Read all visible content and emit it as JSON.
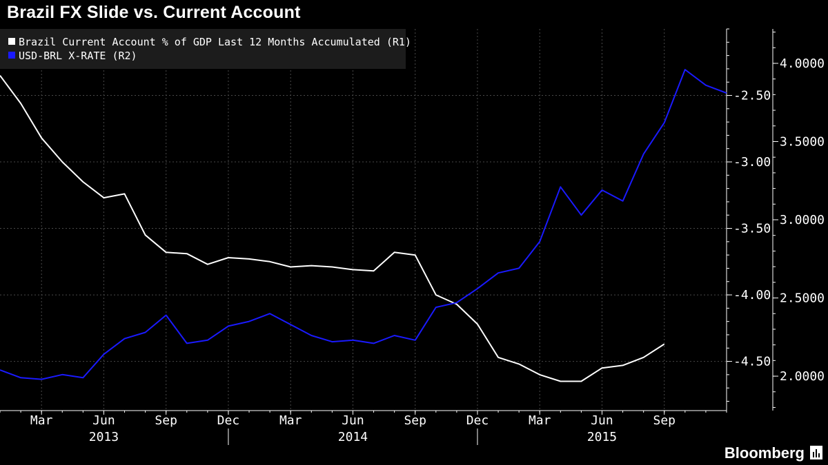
{
  "title": "Brazil FX Slide vs. Current Account",
  "brand": "Bloomberg",
  "colors": {
    "background": "#000000",
    "current_account": "#ffffff",
    "usd_brl": "#1a1aff",
    "axis": "#ffffff",
    "grid": "#4a4a4a"
  },
  "chart_data": {
    "type": "line",
    "title": "Brazil FX Slide vs. Current Account",
    "grid": true,
    "legend_position": "top-left",
    "x_axis": {
      "range": [
        "2013-01-01",
        "2015-12-01"
      ],
      "month_ticks": [
        {
          "label": "Mar",
          "date": "2013-03-01"
        },
        {
          "label": "Jun",
          "date": "2013-06-01"
        },
        {
          "label": "Sep",
          "date": "2013-09-01"
        },
        {
          "label": "Dec",
          "date": "2013-12-01"
        },
        {
          "label": "Mar",
          "date": "2014-03-01"
        },
        {
          "label": "Jun",
          "date": "2014-06-01"
        },
        {
          "label": "Sep",
          "date": "2014-09-01"
        },
        {
          "label": "Dec",
          "date": "2014-12-01"
        },
        {
          "label": "Mar",
          "date": "2015-03-01"
        },
        {
          "label": "Jun",
          "date": "2015-06-01"
        },
        {
          "label": "Sep",
          "date": "2015-09-01"
        }
      ],
      "year_labels": [
        {
          "label": "2013",
          "date": "2013-06-01"
        },
        {
          "label": "2014",
          "date": "2014-06-01"
        },
        {
          "label": "2015",
          "date": "2015-06-01"
        }
      ],
      "year_separators": [
        "2013-12-01",
        "2014-12-01"
      ]
    },
    "axis_r1": {
      "range": [
        -4.87,
        -2.0
      ],
      "ticks": [
        "-2.50",
        "-3.00",
        "-3.50",
        "-4.00",
        "-4.50"
      ]
    },
    "axis_r2": {
      "range": [
        1.78,
        4.22
      ],
      "ticks": [
        "4.0000",
        "3.5000",
        "3.0000",
        "2.5000",
        "2.0000"
      ]
    },
    "series": [
      {
        "name": "Brazil Current Account % of GDP Last 12 Months Accumulated  (R1)",
        "axis": "R1",
        "color": "#ffffff",
        "x": [
          "2013-01-01",
          "2013-02-01",
          "2013-03-01",
          "2013-04-01",
          "2013-05-01",
          "2013-06-01",
          "2013-07-01",
          "2013-08-01",
          "2013-09-01",
          "2013-10-01",
          "2013-11-01",
          "2013-12-01",
          "2014-01-01",
          "2014-02-01",
          "2014-03-01",
          "2014-04-01",
          "2014-05-01",
          "2014-06-01",
          "2014-07-01",
          "2014-08-01",
          "2014-09-01",
          "2014-10-01",
          "2014-11-01",
          "2014-12-01",
          "2015-01-01",
          "2015-02-01",
          "2015-03-01",
          "2015-04-01",
          "2015-05-01",
          "2015-06-01",
          "2015-07-01",
          "2015-08-01",
          "2015-09-01"
        ],
        "values": [
          -2.35,
          -2.56,
          -2.82,
          -3.0,
          -3.15,
          -3.27,
          -3.24,
          -3.55,
          -3.68,
          -3.69,
          -3.77,
          -3.72,
          -3.73,
          -3.75,
          -3.79,
          -3.78,
          -3.79,
          -3.81,
          -3.82,
          -3.68,
          -3.7,
          -4.0,
          -4.07,
          -4.22,
          -4.47,
          -4.52,
          -4.6,
          -4.65,
          -4.65,
          -4.55,
          -4.53,
          -4.47,
          -4.37
        ]
      },
      {
        "name": "USD-BRL X-RATE  (R2)",
        "axis": "R2",
        "color": "#1a1aff",
        "x": [
          "2013-01-01",
          "2013-02-01",
          "2013-03-01",
          "2013-04-01",
          "2013-05-01",
          "2013-06-01",
          "2013-07-01",
          "2013-08-01",
          "2013-09-01",
          "2013-10-01",
          "2013-11-01",
          "2013-12-01",
          "2014-01-01",
          "2014-02-01",
          "2014-03-01",
          "2014-04-01",
          "2014-05-01",
          "2014-06-01",
          "2014-07-01",
          "2014-08-01",
          "2014-09-01",
          "2014-10-01",
          "2014-11-01",
          "2014-12-01",
          "2015-01-01",
          "2015-02-01",
          "2015-03-01",
          "2015-04-01",
          "2015-05-01",
          "2015-06-01",
          "2015-07-01",
          "2015-08-01",
          "2015-09-01",
          "2015-10-01",
          "2015-11-01",
          "2015-12-01"
        ],
        "values": [
          2.04,
          1.99,
          1.98,
          2.01,
          1.99,
          2.14,
          2.24,
          2.28,
          2.39,
          2.21,
          2.23,
          2.32,
          2.35,
          2.4,
          2.33,
          2.26,
          2.22,
          2.23,
          2.21,
          2.26,
          2.23,
          2.44,
          2.47,
          2.56,
          2.66,
          2.69,
          2.86,
          3.21,
          3.03,
          3.19,
          3.12,
          3.42,
          3.62,
          3.96,
          3.86,
          3.81
        ]
      }
    ]
  }
}
